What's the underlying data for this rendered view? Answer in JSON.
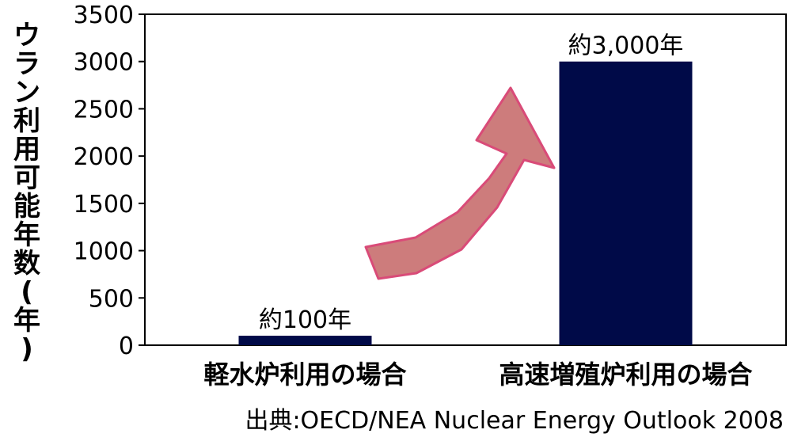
{
  "chart_data": {
    "type": "bar",
    "categories": [
      "軽水炉利用の場合",
      "高速増殖炉利用の場合"
    ],
    "values": [
      100,
      3000
    ],
    "data_labels": [
      "約100年",
      "約3,000年"
    ],
    "ylabel": "ウラン利用可能年数(年)",
    "ylim": [
      0,
      3500
    ],
    "yticks": [
      0,
      500,
      1000,
      1500,
      2000,
      2500,
      3000,
      3500
    ],
    "grid": false,
    "bar_color": "#000a48",
    "arrow_color": "#cd7c7c",
    "arrow_edge_color": "#d94b78"
  },
  "source": "出典:OECD/NEA Nuclear Energy Outlook 2008"
}
